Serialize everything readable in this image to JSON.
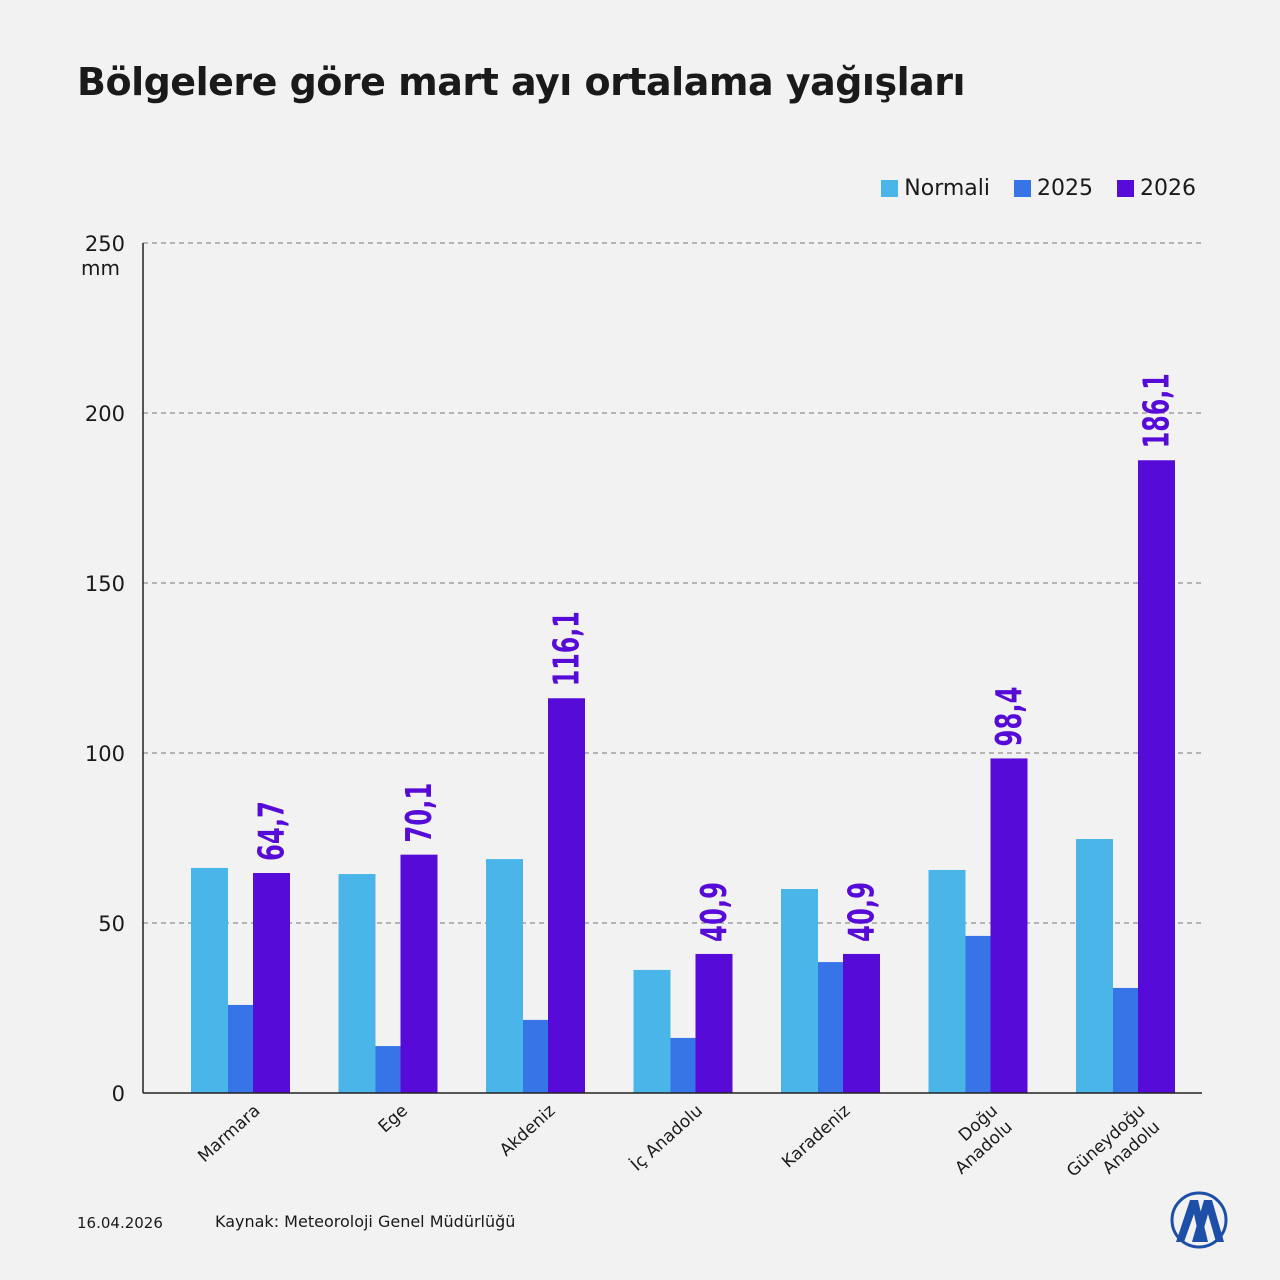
{
  "title": "Bölgelere göre mart ayı ortalama yağışları",
  "date": "16.04.2026",
  "source": "Kaynak: Meteoroloji Genel Müdürlüğü",
  "logo_text": "AA",
  "chart_data": {
    "type": "bar",
    "title": "Bölgelere göre mart ayı ortalama yağışları",
    "ylabel": "mm",
    "ylim": [
      0,
      250
    ],
    "yticks": [
      0,
      50,
      100,
      150,
      200,
      250
    ],
    "grid": true,
    "legend": "top-right",
    "categories": [
      "Marmara",
      "Ege",
      "Akdeniz",
      "İç Anadolu",
      "Karadeniz",
      "Doğu Anadolu",
      "Güneydoğu Anadolu"
    ],
    "series": [
      {
        "name": "Normali",
        "color": "#4ab5e8",
        "values": [
          66.2,
          64.4,
          68.8,
          36.2,
          60.0,
          65.6,
          74.7
        ]
      },
      {
        "name": "2025",
        "color": "#3674e8",
        "values": [
          25.9,
          13.8,
          21.5,
          16.2,
          38.5,
          46.2,
          30.9
        ]
      },
      {
        "name": "2026",
        "color": "#560bd8",
        "values": [
          64.7,
          70.1,
          116.1,
          40.9,
          40.9,
          98.4,
          186.1
        ],
        "labels": [
          "64,7",
          "70,1",
          "116,1",
          "40,9",
          "40,9",
          "98,4",
          "186,1"
        ]
      }
    ]
  }
}
